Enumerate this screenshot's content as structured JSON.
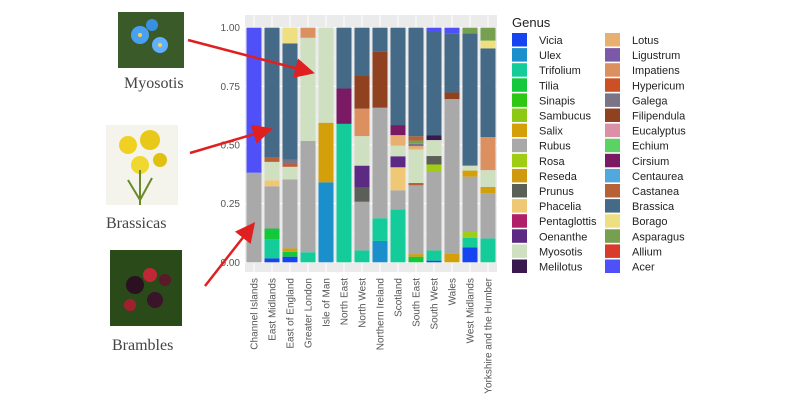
{
  "annotations": [
    {
      "label": "Myosotis",
      "image": "forget-me-not-flower-photo"
    },
    {
      "label": "Brassicas",
      "image": "yellow-rapeseed-flower-photo"
    },
    {
      "label": "Brambles",
      "image": "blackberry-photo"
    }
  ],
  "colors": {
    "arrow": "#e02020",
    "panel": "#ebebeb"
  },
  "chart_data": {
    "type": "bar",
    "stacked": true,
    "grid": true,
    "legend_position": "right",
    "xlabel": "",
    "ylabel": "",
    "ylim": [
      0,
      1
    ],
    "yticks": [
      "0.00",
      "0.25",
      "0.50",
      "0.75",
      "1.00"
    ],
    "legend_title": "Genus",
    "genera": [
      {
        "name": "Vicia",
        "color": "#1544f0"
      },
      {
        "name": "Ulex",
        "color": "#1a8fcc"
      },
      {
        "name": "Trifolium",
        "color": "#14cc9a"
      },
      {
        "name": "Tilia",
        "color": "#14c83c"
      },
      {
        "name": "Sinapis",
        "color": "#2ec814"
      },
      {
        "name": "Sambucus",
        "color": "#8cc814"
      },
      {
        "name": "Salix",
        "color": "#d4a00a"
      },
      {
        "name": "Rubus",
        "color": "#a9a9a9"
      },
      {
        "name": "Rosa",
        "color": "#a0cc14"
      },
      {
        "name": "Reseda",
        "color": "#d09a10"
      },
      {
        "name": "Prunus",
        "color": "#5a6058"
      },
      {
        "name": "Phacelia",
        "color": "#eec874"
      },
      {
        "name": "Pentaglottis",
        "color": "#b0206a"
      },
      {
        "name": "Oenanthe",
        "color": "#5c2a82"
      },
      {
        "name": "Myosotis",
        "color": "#cfe0c0"
      },
      {
        "name": "Melilotus",
        "color": "#3a1a4e"
      },
      {
        "name": "Lotus",
        "color": "#e8b070"
      },
      {
        "name": "Ligustrum",
        "color": "#7a5aa8"
      },
      {
        "name": "Impatiens",
        "color": "#dc9060"
      },
      {
        "name": "Hypericum",
        "color": "#cc5024"
      },
      {
        "name": "Galega",
        "color": "#7a7488"
      },
      {
        "name": "Filipendula",
        "color": "#904220"
      },
      {
        "name": "Eucalyptus",
        "color": "#dc90a8"
      },
      {
        "name": "Echium",
        "color": "#5cd264"
      },
      {
        "name": "Cirsium",
        "color": "#7a1a64"
      },
      {
        "name": "Centaurea",
        "color": "#50a8dc"
      },
      {
        "name": "Castanea",
        "color": "#b86038"
      },
      {
        "name": "Brassica",
        "color": "#456a88"
      },
      {
        "name": "Borago",
        "color": "#eee080"
      },
      {
        "name": "Asparagus",
        "color": "#76a050"
      },
      {
        "name": "Allium",
        "color": "#d83a2c"
      },
      {
        "name": "Acer",
        "color": "#5050f8"
      }
    ],
    "categories": [
      "Channel Islands",
      "East Midlands",
      "East of England",
      "Greater London",
      "Isle of Man",
      "North East",
      "North West",
      "Northern Ireland",
      "Scotland",
      "South East",
      "South West",
      "Wales",
      "West Midlands",
      "Yorkshire and the Humber"
    ],
    "stacks": [
      [
        [
          "Rubus",
          0.382
        ],
        [
          "Acer",
          0.618
        ]
      ],
      [
        [
          "Vicia",
          0.017
        ],
        [
          "Trifolium",
          0.082
        ],
        [
          "Tilia",
          0.045
        ],
        [
          "Rubus",
          0.18
        ],
        [
          "Phacelia",
          0.026
        ],
        [
          "Myosotis",
          0.078
        ],
        [
          "Castanea",
          0.018
        ],
        [
          "Brassica",
          0.554
        ]
      ],
      [
        [
          "Vicia",
          0.024
        ],
        [
          "Tilia",
          0.021
        ],
        [
          "Salix",
          0.014
        ],
        [
          "Rubus",
          0.294
        ],
        [
          "Myosotis",
          0.054
        ],
        [
          "Castanea",
          0.014
        ],
        [
          "Galega",
          0.017
        ],
        [
          "Brassica",
          0.495
        ],
        [
          "Borago",
          0.067
        ]
      ],
      [
        [
          "Trifolium",
          0.043
        ],
        [
          "Rubus",
          0.474
        ],
        [
          "Myosotis",
          0.44
        ],
        [
          "Impatiens",
          0.043
        ]
      ],
      [
        [
          "Ulex",
          0.341
        ],
        [
          "Salix",
          0.254
        ],
        [
          "Myosotis",
          0.405
        ]
      ],
      [
        [
          "Trifolium",
          0.59
        ],
        [
          "Cirsium",
          0.151
        ],
        [
          "Brassica",
          0.259
        ]
      ],
      [
        [
          "Trifolium",
          0.051
        ],
        [
          "Rubus",
          0.207
        ],
        [
          "Prunus",
          0.06
        ],
        [
          "Oenanthe",
          0.094
        ],
        [
          "Myosotis",
          0.126
        ],
        [
          "Impatiens",
          0.117
        ],
        [
          "Filipendula",
          0.143
        ],
        [
          "Brassica",
          0.202
        ]
      ],
      [
        [
          "Ulex",
          0.091
        ],
        [
          "Trifolium",
          0.097
        ],
        [
          "Rubus",
          0.471
        ],
        [
          "Filipendula",
          0.239
        ],
        [
          "Brassica",
          0.102
        ]
      ],
      [
        [
          "Trifolium",
          0.226
        ],
        [
          "Rubus",
          0.081
        ],
        [
          "Phacelia",
          0.098
        ],
        [
          "Oenanthe",
          0.047
        ],
        [
          "Myosotis",
          0.045
        ],
        [
          "Lotus",
          0.045
        ],
        [
          "Cirsium",
          0.043
        ],
        [
          "Brassica",
          0.415
        ]
      ],
      [
        [
          "Tilia",
          0.024
        ],
        [
          "Salix",
          0.011
        ],
        [
          "Rubus",
          0.293
        ],
        [
          "Castanea",
          0.01
        ],
        [
          "Myosotis",
          0.143
        ],
        [
          "Lotus",
          0.014
        ],
        [
          "Galega",
          0.01
        ],
        [
          "Asparagus",
          0.014
        ],
        [
          "Castanea",
          0.018
        ],
        [
          "Brassica",
          0.463
        ]
      ],
      [
        [
          "Vicia",
          0.007
        ],
        [
          "Trifolium",
          0.044
        ],
        [
          "Rubus",
          0.338
        ],
        [
          "Rosa",
          0.028
        ],
        [
          "Prunus",
          0.036
        ],
        [
          "Myosotis",
          0.068
        ],
        [
          "Melilotus",
          0.021
        ],
        [
          "Brassica",
          0.444
        ],
        [
          "Acer",
          0.014
        ]
      ],
      [
        [
          "Salix",
          0.037
        ],
        [
          "Rubus",
          0.659
        ],
        [
          "Filipendula",
          0.028
        ],
        [
          "Brassica",
          0.252
        ],
        [
          "Acer",
          0.024
        ]
      ],
      [
        [
          "Vicia",
          0.064
        ],
        [
          "Trifolium",
          0.041
        ],
        [
          "Rosa",
          0.024
        ],
        [
          "Rubus",
          0.236
        ],
        [
          "Salix",
          0.026
        ],
        [
          "Myosotis",
          0.021
        ],
        [
          "Brassica",
          0.564
        ],
        [
          "Asparagus",
          0.024
        ]
      ],
      [
        [
          "Trifolium",
          0.102
        ],
        [
          "Rubus",
          0.192
        ],
        [
          "Salix",
          0.027
        ],
        [
          "Myosotis",
          0.072
        ],
        [
          "Impatiens",
          0.141
        ],
        [
          "Brassica",
          0.378
        ],
        [
          "Borago",
          0.033
        ],
        [
          "Asparagus",
          0.055
        ]
      ]
    ]
  }
}
